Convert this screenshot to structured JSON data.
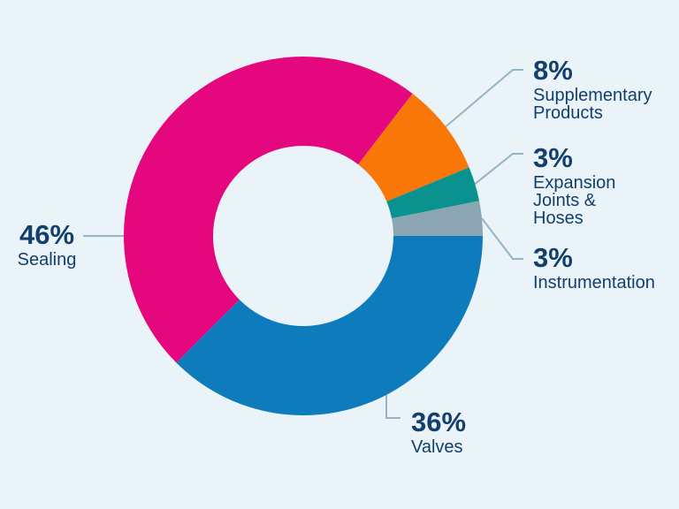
{
  "chart_data": {
    "type": "pie",
    "subtype": "donut",
    "title": "",
    "legend_position": "callout-labels",
    "start_angle_deg": 225,
    "clockwise": true,
    "inner_radius_ratio": 0.5,
    "background_color": "#EAF3F8",
    "label_color": "#123F6B",
    "connector_color": "#96B4C2",
    "categories": [
      "Sealing",
      "Supplementary Products",
      "Expansion Joints & Hoses",
      "Instrumentation",
      "Valves"
    ],
    "values": [
      46,
      8,
      3,
      3,
      36
    ],
    "segments": [
      {
        "label": "Sealing",
        "value": 46,
        "pct_label": "46%",
        "color": "#E5077E",
        "name_lines": [
          "Sealing"
        ]
      },
      {
        "label": "Supplementary Products",
        "value": 8,
        "pct_label": "8%",
        "color": "#F97608",
        "name_lines": [
          "Supplementary",
          "Products"
        ]
      },
      {
        "label": "Expansion Joints & Hoses",
        "value": 3,
        "pct_label": "3%",
        "color": "#0A938E",
        "name_lines": [
          "Expansion",
          "Joints &",
          "Hoses"
        ]
      },
      {
        "label": "Instrumentation",
        "value": 3,
        "pct_label": "3%",
        "color": "#8BA6B2",
        "name_lines": [
          "Instrumentation"
        ]
      },
      {
        "label": "Valves",
        "value": 36,
        "pct_label": "36%",
        "color": "#0E7CBC",
        "name_lines": [
          "Valves"
        ]
      }
    ]
  }
}
